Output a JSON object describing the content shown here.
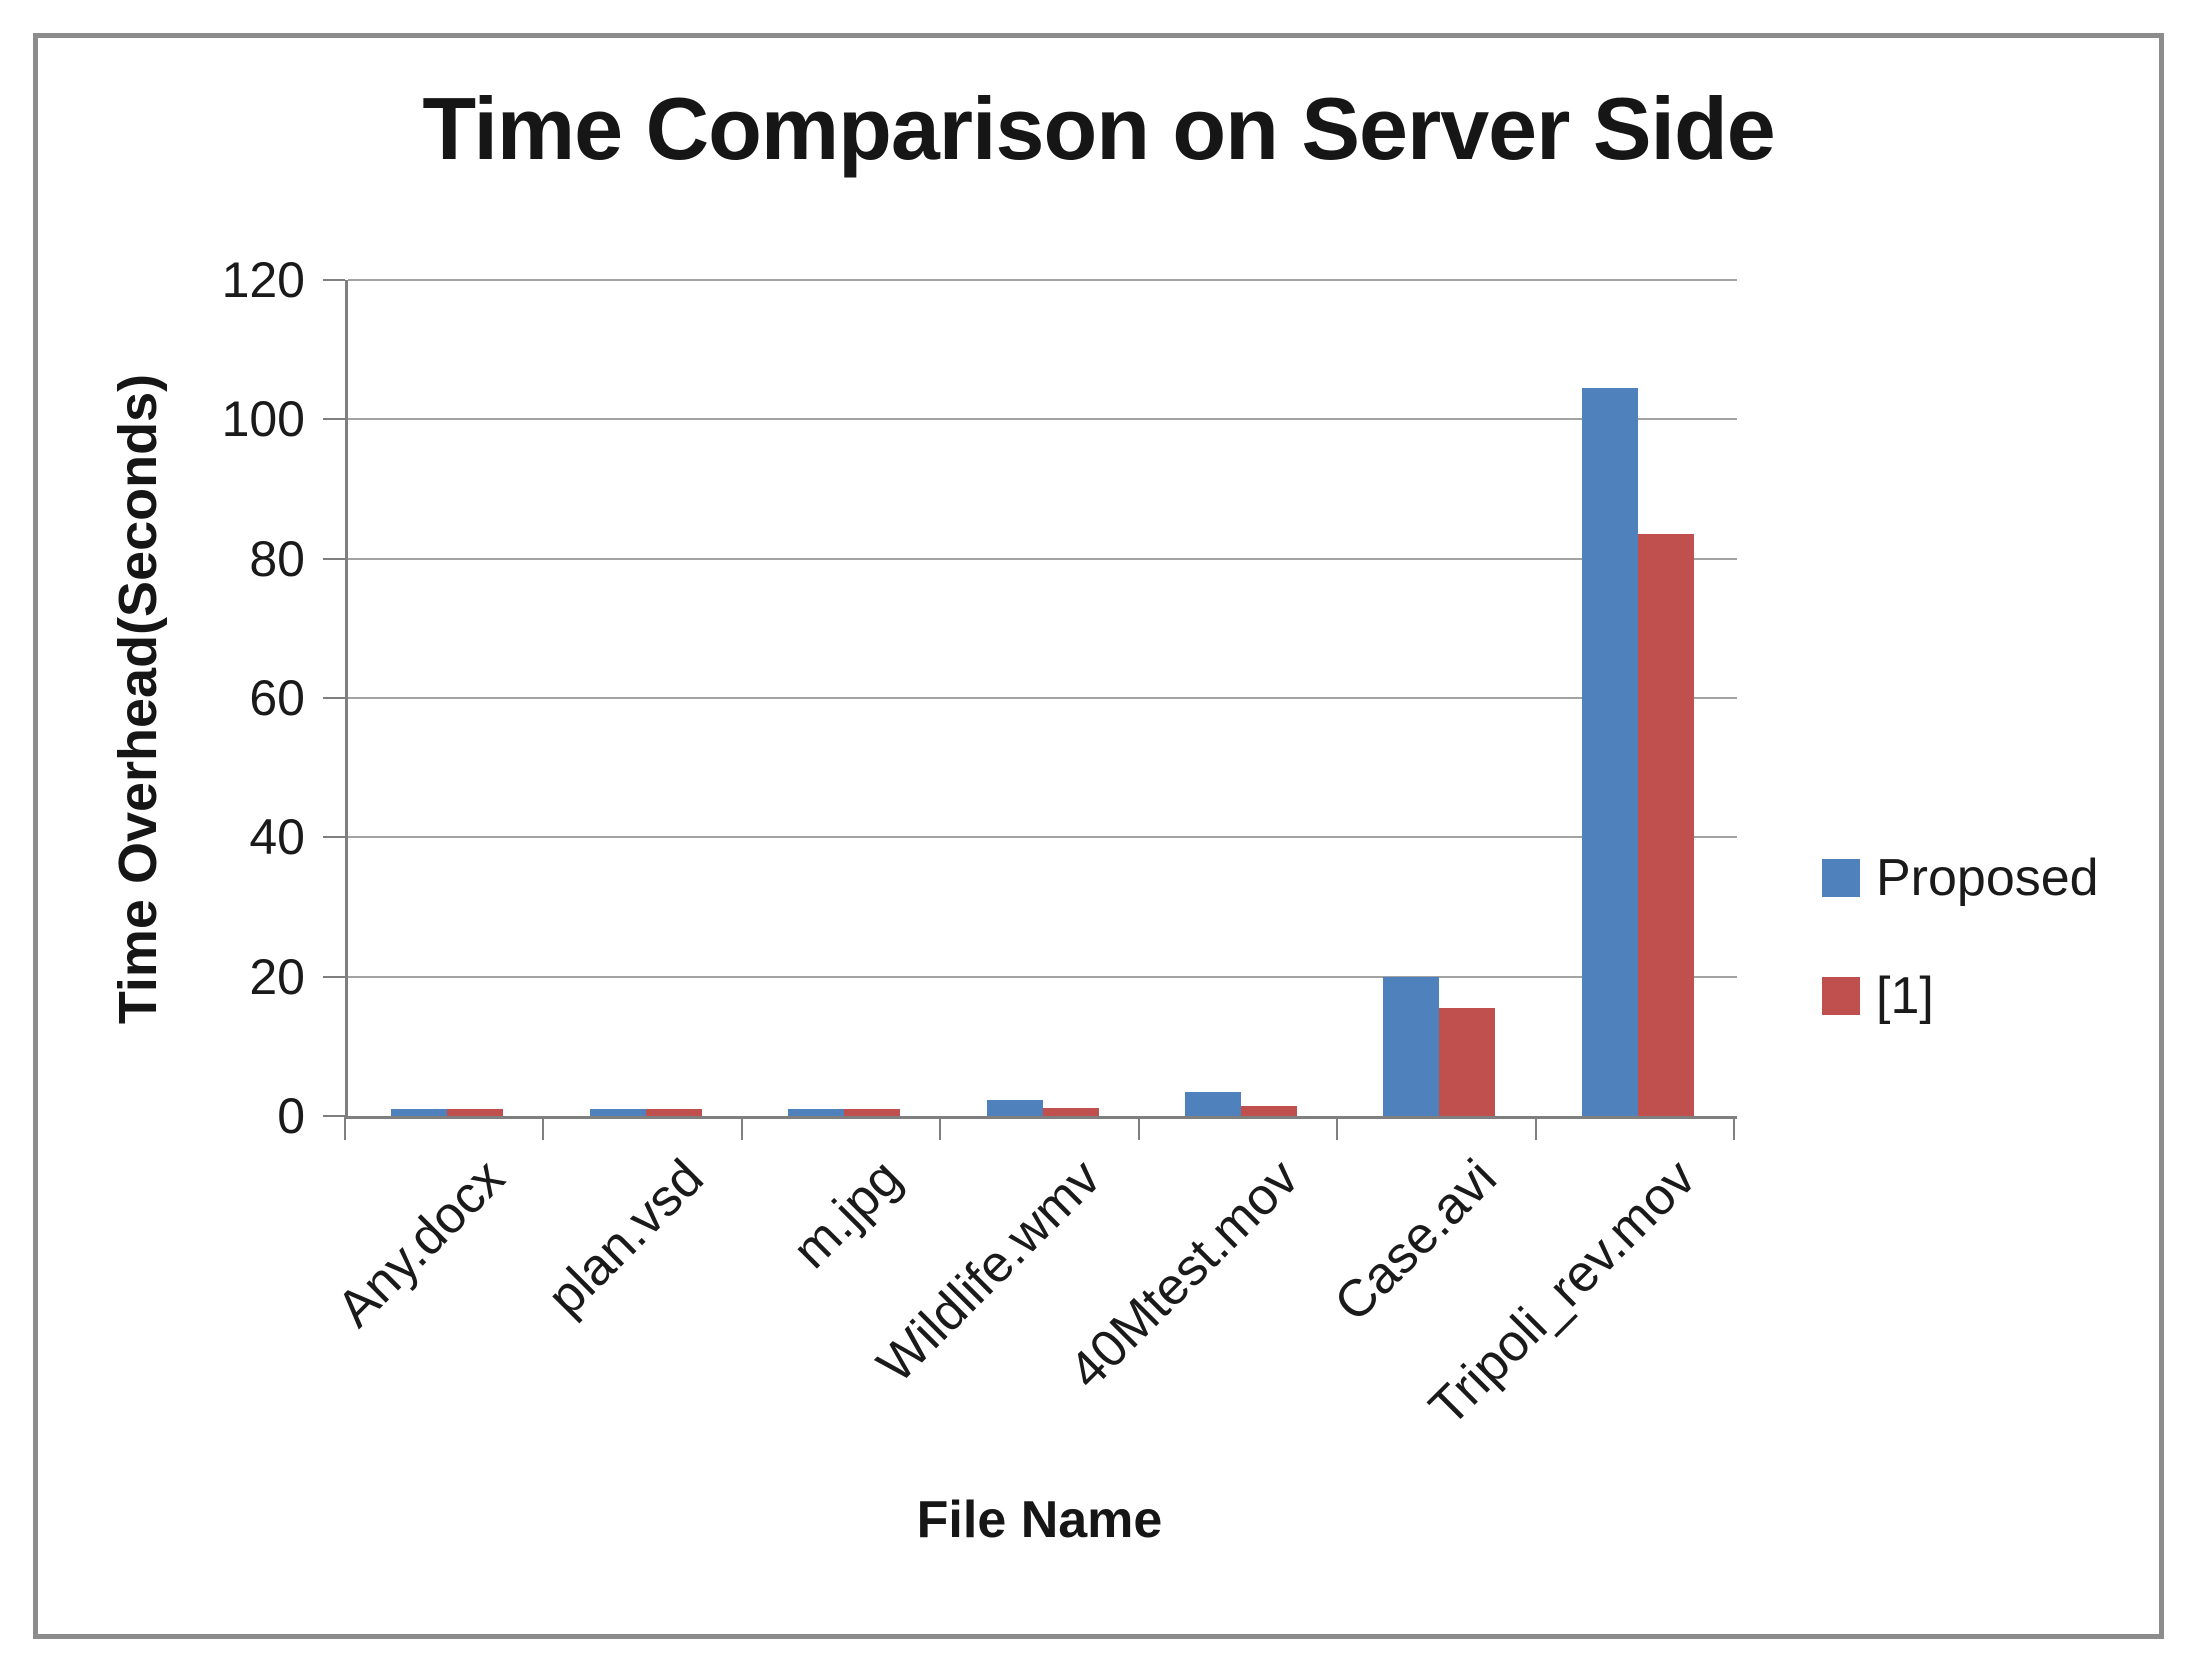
{
  "chart_data": {
    "type": "bar",
    "title": "Time Comparison on Server Side",
    "xlabel": "File Name",
    "ylabel": "Time Overhead(Seconds)",
    "categories": [
      "Any.docx",
      "plan.vsd",
      "m.jpg",
      "Wildlife.wmv",
      "40Mtest.mov",
      "Case.avi",
      "Tripoli_rev.mov"
    ],
    "series": [
      {
        "name": "Proposed",
        "color": "#4f81bd",
        "values": [
          1,
          1,
          1,
          2.3,
          3.5,
          20,
          104.5
        ]
      },
      {
        "name": "[1]",
        "color": "#c0504d",
        "values": [
          1,
          1,
          1,
          1.1,
          1.5,
          15.5,
          83.5
        ]
      }
    ],
    "ylim": [
      0,
      120
    ],
    "yticks": [
      0,
      20,
      40,
      60,
      80,
      100,
      120
    ],
    "grid": true,
    "legend_position": "right",
    "axis_color": "#7f7f7f",
    "gridline_color": "#a3a3a3",
    "frame_color": "#8c8c8c"
  }
}
